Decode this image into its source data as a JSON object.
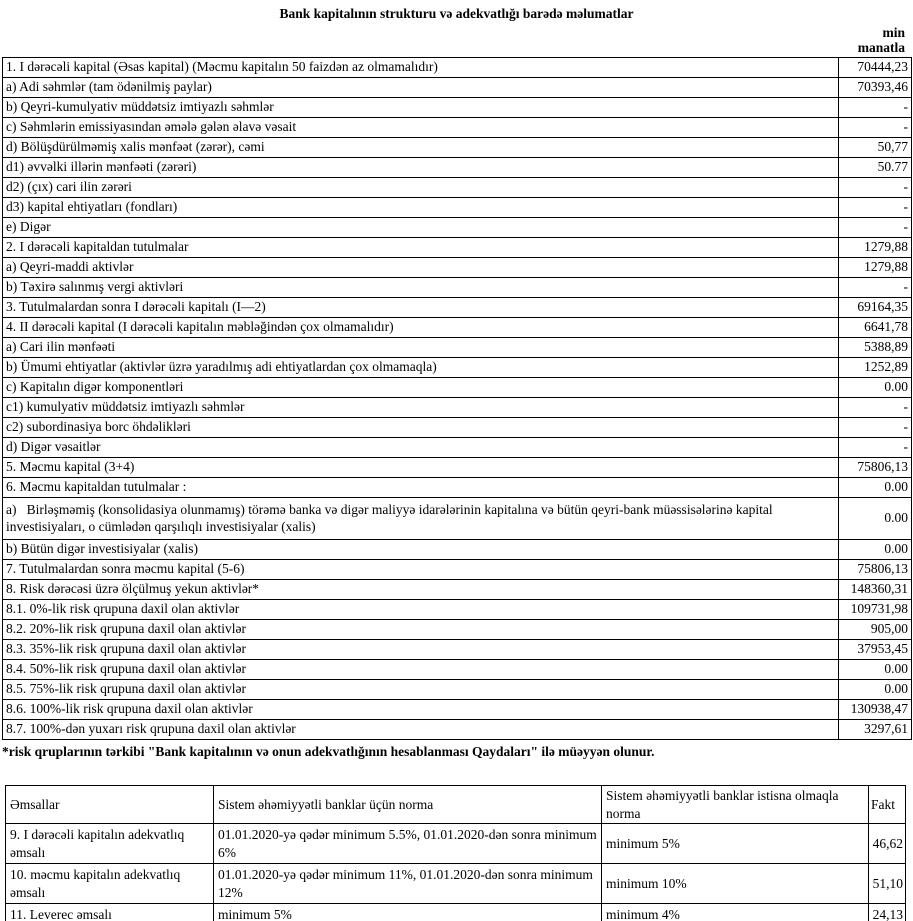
{
  "title": "Bank kapitalının strukturu və adekvatlığı barədə məlumatlar",
  "unit_note": {
    "line1": "min",
    "line2": "manatla"
  },
  "capital_table": {
    "rows": [
      {
        "label": "1. I dərəcəli kapital (Əsas kapital) (Məcmu kapitalın 50 faizdən az olmamalıdır)",
        "value": "70444,23",
        "tall": false
      },
      {
        "label": "a) Adi səhmlər (tam ödənilmiş paylar)",
        "value": "70393,46",
        "tall": false
      },
      {
        "label": "b) Qeyri-kumulyativ müddətsiz imtiyazlı səhmlər",
        "value": "-",
        "tall": false
      },
      {
        "label": "c) Səhmlərin emissiyasından əmələ gələn əlavə vəsait",
        "value": "-",
        "tall": false
      },
      {
        "label": "d) Bölüşdürülməmiş xalis mənfəət (zərər), cəmi",
        "value": "50,77",
        "tall": false
      },
      {
        "label": "d1) əvvəlki illərin mənfəəti (zərəri)",
        "value": "50.77",
        "tall": false
      },
      {
        "label": "d2) (çıx) cari ilin zərəri",
        "value": "-",
        "tall": false
      },
      {
        "label": "d3) kapital ehtiyatları (fondları)",
        "value": "-",
        "tall": false
      },
      {
        "label": "e) Digər",
        "value": "-",
        "tall": false
      },
      {
        "label": "2. I dərəcəli kapitaldan tutulmalar",
        "value": "1279,88",
        "tall": false
      },
      {
        "label": "a) Qeyri-maddi aktivlər",
        "value": "1279,88",
        "tall": false
      },
      {
        "label": "b) Təxirə salınmış vergi aktivləri",
        "value": "-",
        "tall": false
      },
      {
        "label": "3. Tutulmalardan sonra I dərəcəli kapitalı (I—2)",
        "value": "69164,35",
        "tall": false
      },
      {
        "label": "4. II dərəcəli kapital (I dərəcəli kapitalın məbləğindən çox olmamalıdır)",
        "value": "6641,78",
        "tall": false
      },
      {
        "label": "a) Cari ilin mənfəəti",
        "value": "5388,89",
        "tall": false
      },
      {
        "label": "b) Ümumi ehtiyatlar (aktivlər üzrə yaradılmış adi ehtiyatlardan çox olmamaqla)",
        "value": "1252,89",
        "tall": false
      },
      {
        "label": "c) Kapitalın digər komponentləri",
        "value": "0.00",
        "tall": false
      },
      {
        "label": "c1) kumulyativ müddətsiz imtiyazlı səhmlər",
        "value": "-",
        "tall": false
      },
      {
        "label": "c2) subordinasiya borc öhdəlikləri",
        "value": "-",
        "tall": false
      },
      {
        "label": "d) Digər vəsaitlər",
        "value": "-",
        "tall": false
      },
      {
        "label": "5. Məcmu kapital (3+4)",
        "value": "75806,13",
        "tall": false
      },
      {
        "label": "6. Məcmu kapitaldan tutulmalar :",
        "value": "0.00",
        "tall": false
      },
      {
        "label": "a)   Birləşməmiş (konsolidasiya olunmamış) törəmə banka və digər maliyyə idarələrinin kapitalına və bütün qeyri-bank müəssisələrinə kapital investisiyaları, o cümlədən qarşılıqlı investisiyalar (xalis)",
        "value": "0.00",
        "tall": true
      },
      {
        "label": "b) Bütün digər investisiyalar (xalis)",
        "value": "0.00",
        "tall": false
      },
      {
        "label": "7. Tutulmalardan sonra məcmu kapital (5-6)",
        "value": "75806,13",
        "tall": false
      },
      {
        "label": "8. Risk dərəcəsi üzrə ölçülmuş yekun aktivlər*",
        "value": "148360,31",
        "tall": false
      },
      {
        "label": "8.1. 0%-lik risk qrupuna daxil olan aktivlər",
        "value": "109731,98",
        "tall": false
      },
      {
        "label": "8.2. 20%-lik risk qrupuna daxil olan aktivlər",
        "value": "905,00",
        "tall": false
      },
      {
        "label": "8.3. 35%-lik risk qrupuna daxil olan aktivlər",
        "value": "37953,45",
        "tall": false
      },
      {
        "label": "8.4. 50%-lik risk qrupuna daxil olan aktivlər",
        "value": "0.00",
        "tall": false
      },
      {
        "label": "8.5. 75%-lik risk qrupuna daxil olan aktivlər",
        "value": "0.00",
        "tall": false
      },
      {
        "label": "8.6. 100%-lik risk qrupuna daxil olan aktivlər",
        "value": "130938,47",
        "tall": false
      },
      {
        "label": "8.7. 100%-dən yuxarı risk qrupuna daxil olan aktivlər",
        "value": "3297,61",
        "tall": false
      }
    ]
  },
  "footnote": "*risk qruplarının tərkibi \"Bank kapitalının və onun adekvatlığının hesablanması Qaydaları\" ilə müəyyən olunur.",
  "ratios_table": {
    "headers": [
      "Əmsallar",
      "Sistem əhəmiyyətli banklar üçün norma",
      "Sistem əhəmiyyətli banklar istisna olmaqla norma",
      "Fakt"
    ],
    "rows": [
      {
        "name": "9. I dərəcəli kapitalın adekvatlıq əmsalı",
        "norm_systemic": "01.01.2020-yə qədər minimum 5.5%, 01.01.2020-dən sonra minimum 6%",
        "norm_non_systemic": "minimum 5%",
        "fact": "46,62",
        "tall": true
      },
      {
        "name": "10. məcmu kapitalın adekvatlıq əmsalı",
        "norm_systemic": "01.01.2020-yə qədər minimum 11%, 01.01.2020-dən sonra minimum 12%",
        "norm_non_systemic": "minimum 10%",
        "fact": "51,10",
        "tall": true
      },
      {
        "name": "11. Leverec əmsalı",
        "norm_systemic": "minimum 5%",
        "norm_non_systemic": "minimum 4%",
        "fact": "24,13",
        "tall": false
      }
    ]
  }
}
